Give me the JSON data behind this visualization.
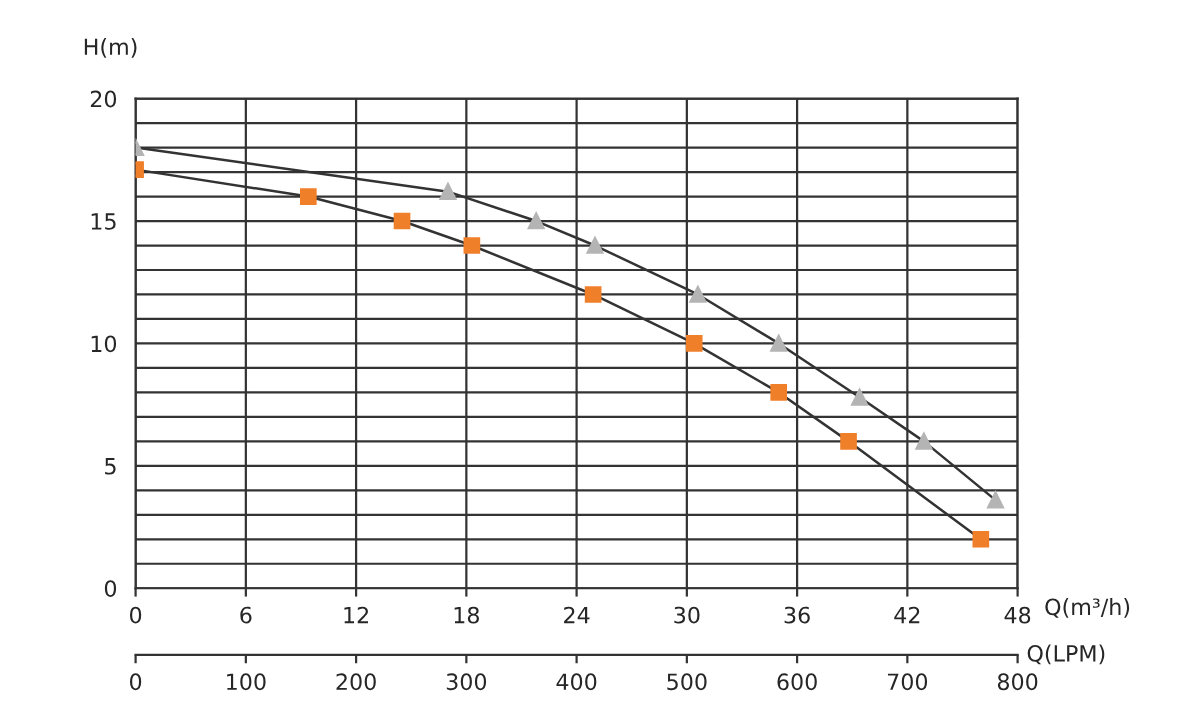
{
  "chart_data": {
    "type": "line",
    "xlabel": "Q(m³/h)",
    "ylabel": "H(m)",
    "x2label": "Q(LPM)",
    "xlim": [
      0,
      48
    ],
    "xticks": [
      0,
      6,
      12,
      18,
      24,
      30,
      36,
      42,
      48
    ],
    "x2lim": [
      0,
      800
    ],
    "x2ticks": [
      0,
      100,
      200,
      300,
      400,
      500,
      600,
      700,
      800
    ],
    "ylim": [
      0,
      20
    ],
    "yticks": [
      0,
      {
        "value": 1,
        "label": null
      },
      {
        "value": 2,
        "label": null
      },
      {
        "value": 3,
        "label": null
      },
      {
        "value": 4,
        "label": null
      },
      5,
      {
        "value": 6,
        "label": null
      },
      {
        "value": 7,
        "label": null
      },
      {
        "value": 8,
        "label": null
      },
      {
        "value": 9,
        "label": null
      },
      10,
      {
        "value": 11,
        "label": null
      },
      {
        "value": 12,
        "label": null
      },
      {
        "value": 13,
        "label": null
      },
      {
        "value": 14,
        "label": null
      },
      15,
      {
        "value": 16,
        "label": null
      },
      {
        "value": 17,
        "label": null
      },
      {
        "value": 18,
        "label": null
      },
      {
        "value": 19,
        "label": null
      },
      20
    ],
    "grid": true,
    "line_style": "solid",
    "series": [
      {
        "color": "#f07f2a",
        "marker": "square",
        "x": [
          0,
          9.4,
          14.5,
          18.3,
          24.9,
          30.4,
          35,
          38.8,
          46
        ],
        "values": [
          17.1,
          16,
          15,
          14,
          12,
          10,
          8,
          6,
          2
        ]
      },
      {
        "color": "#b4b4b4",
        "marker": "triangle",
        "x": [
          0,
          17,
          21.8,
          25,
          30.6,
          35,
          39.4,
          42.9,
          46.8
        ],
        "values": [
          18,
          16.2,
          15,
          14,
          12,
          10,
          7.8,
          6,
          3.6
        ]
      }
    ]
  }
}
